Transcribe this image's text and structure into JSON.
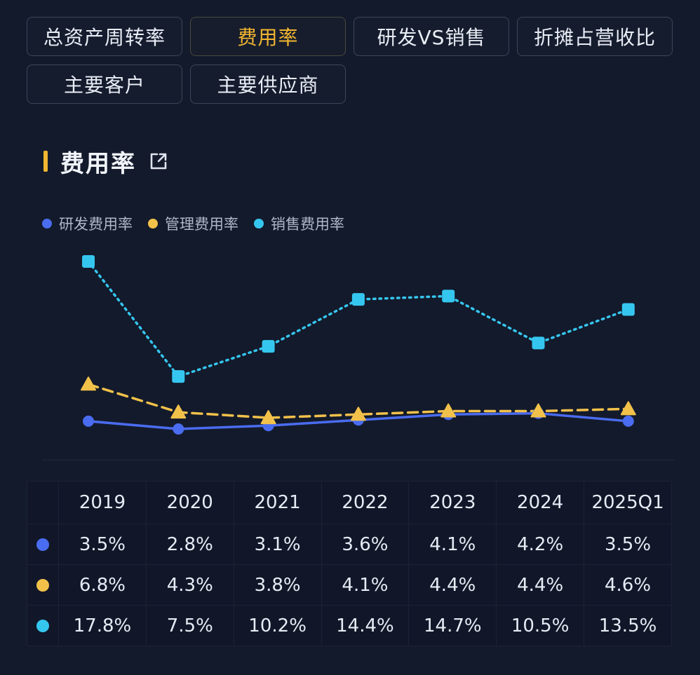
{
  "tabs": [
    {
      "label": "总资产周转率",
      "active": false
    },
    {
      "label": "费用率",
      "active": true
    },
    {
      "label": "研发VS销售",
      "active": false
    },
    {
      "label": "折摊占营收比",
      "active": false
    },
    {
      "label": "主要客户",
      "active": false
    },
    {
      "label": "主要供应商",
      "active": false
    }
  ],
  "section": {
    "title": "费用率",
    "icon": "external-link-icon"
  },
  "colors": {
    "accent": "#f2b630",
    "rd": "#4a6cf0",
    "admin": "#f2c14a",
    "sales": "#35c6ef"
  },
  "chart_data": {
    "type": "line",
    "categories": [
      "2019",
      "2020",
      "2021",
      "2022",
      "2023",
      "2024",
      "2025Q1"
    ],
    "series": [
      {
        "name": "研发费用率",
        "values": [
          3.5,
          2.8,
          3.1,
          3.6,
          4.1,
          4.2,
          3.5
        ],
        "labels": [
          "3.5%",
          "2.8%",
          "3.1%",
          "3.6%",
          "4.1%",
          "4.2%",
          "3.5%"
        ],
        "marker": "circle",
        "line": "solid",
        "color": "#4a6cf0"
      },
      {
        "name": "管理费用率",
        "values": [
          6.8,
          4.3,
          3.8,
          4.1,
          4.4,
          4.4,
          4.6
        ],
        "labels": [
          "6.8%",
          "4.3%",
          "3.8%",
          "4.1%",
          "4.4%",
          "4.4%",
          "4.6%"
        ],
        "marker": "triangle",
        "line": "dashed",
        "color": "#f2c14a"
      },
      {
        "name": "销售费用率",
        "values": [
          17.8,
          7.5,
          10.2,
          14.4,
          14.7,
          10.5,
          13.5
        ],
        "labels": [
          "17.8%",
          "7.5%",
          "10.2%",
          "14.4%",
          "14.7%",
          "10.5%",
          "13.5%"
        ],
        "marker": "square",
        "line": "dotted",
        "color": "#35c6ef"
      }
    ],
    "legend": "top-left",
    "grid": false,
    "table_below": true
  }
}
